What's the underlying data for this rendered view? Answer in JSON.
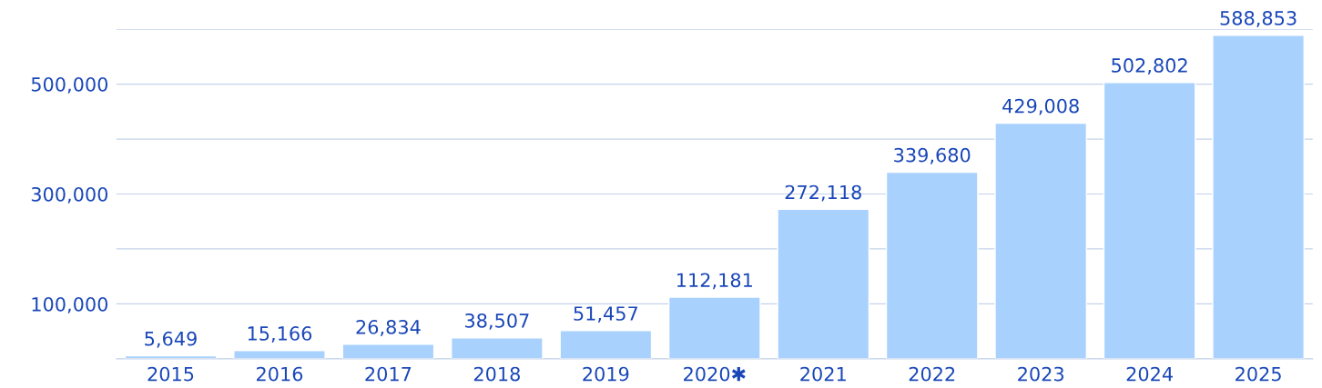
{
  "chart_data": {
    "type": "bar",
    "categories": [
      "2015",
      "2016",
      "2017",
      "2018",
      "2019",
      "2020✱",
      "2021",
      "2022",
      "2023",
      "2024",
      "2025"
    ],
    "values": [
      5649,
      15166,
      26834,
      38507,
      51457,
      112181,
      272118,
      339680,
      429008,
      502802,
      588853
    ],
    "value_labels": [
      "5,649",
      "15,166",
      "26,834",
      "38,507",
      "51,457",
      "112,181",
      "272,118",
      "339,680",
      "429,008",
      "502,802",
      "588,853"
    ],
    "color": "#a8d1fd",
    "ylim": [
      0,
      600000
    ],
    "yticks": [
      {
        "value": 0,
        "label": null
      },
      {
        "value": 100000,
        "label": "100,000"
      },
      {
        "value": 200000,
        "label": null
      },
      {
        "value": 300000,
        "label": "300,000"
      },
      {
        "value": 400000,
        "label": null
      },
      {
        "value": 500000,
        "label": "500,000"
      },
      {
        "value": 600000,
        "label": null
      }
    ],
    "grid": "y"
  }
}
